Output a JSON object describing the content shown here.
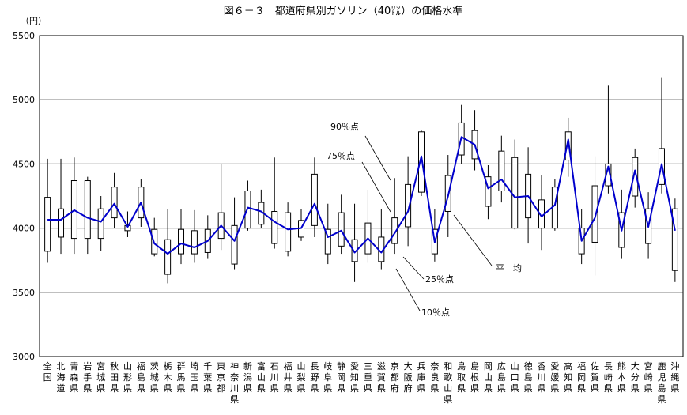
{
  "chart_data": {
    "type": "box",
    "title": "図６－３　都道府県別ガソリン（40㍑）の価格水準",
    "ylabel": "（円）",
    "ylim": [
      3000,
      5500
    ],
    "yticks": [
      3000,
      3500,
      4000,
      4500,
      5000,
      5500
    ],
    "grid_y": [
      3500,
      4000,
      4500,
      5000
    ],
    "categories": [
      "全国",
      "北海道",
      "青森県",
      "岩手県",
      "宮城県",
      "秋田県",
      "山形県",
      "福島県",
      "茨城県",
      "栃木県",
      "群馬県",
      "埼玉県",
      "千葉県",
      "東京都",
      "神奈川県",
      "新潟県",
      "富山県",
      "石川県",
      "福井県",
      "山梨県",
      "長野県",
      "岐阜県",
      "静岡県",
      "愛知県",
      "三重県",
      "滋賀県",
      "京都府",
      "大阪府",
      "兵庫県",
      "奈良県",
      "和歌山県",
      "鳥取県",
      "島根県",
      "岡山県",
      "広島県",
      "山口県",
      "徳島県",
      "香川県",
      "愛媛県",
      "高知県",
      "福岡県",
      "佐賀県",
      "長崎県",
      "熊本県",
      "大分県",
      "宮崎県",
      "鹿児島県",
      "沖縄県"
    ],
    "series": [
      {
        "name": "平均",
        "values": [
          4065,
          4065,
          4140,
          4080,
          4050,
          4190,
          4010,
          4200,
          3880,
          3800,
          3880,
          3850,
          3900,
          4020,
          3900,
          4160,
          4130,
          4050,
          3990,
          4000,
          4190,
          3930,
          3980,
          3810,
          3920,
          3810,
          3960,
          4130,
          4560,
          3890,
          4250,
          4710,
          4650,
          4310,
          4380,
          4240,
          4250,
          4090,
          4180,
          4690,
          3900,
          4080,
          4480,
          3980,
          4450,
          4010,
          4500,
          3980
        ]
      },
      {
        "name": "25%点",
        "values": [
          3820,
          3930,
          3920,
          3920,
          3920,
          4080,
          3980,
          4080,
          3800,
          3640,
          3800,
          3800,
          3810,
          3920,
          3720,
          4000,
          4030,
          3880,
          3820,
          3930,
          4020,
          3800,
          3860,
          3740,
          3800,
          3740,
          3880,
          4010,
          4280,
          3800,
          4130,
          4570,
          4540,
          4170,
          4290,
          4000,
          4080,
          4000,
          4000,
          4530,
          3800,
          3890,
          4330,
          3850,
          4250,
          3880,
          4340,
          3670
        ]
      },
      {
        "name": "75%点",
        "values": [
          4240,
          4150,
          4370,
          4370,
          4150,
          4320,
          4020,
          4320,
          3990,
          3910,
          3990,
          3980,
          3990,
          4120,
          4020,
          4290,
          4200,
          4130,
          4120,
          4060,
          4420,
          3990,
          4120,
          3910,
          4040,
          3930,
          4080,
          4340,
          4750,
          3990,
          4410,
          4820,
          4760,
          4400,
          4600,
          4550,
          4420,
          4220,
          4320,
          4750,
          4000,
          4330,
          4500,
          4120,
          4550,
          4150,
          4620,
          4150
        ]
      },
      {
        "name": "10%点",
        "values": [
          3730,
          3800,
          3800,
          3800,
          3820,
          4000,
          3930,
          4010,
          3780,
          3570,
          3720,
          3730,
          3760,
          3830,
          3680,
          3980,
          4000,
          3840,
          3780,
          3900,
          3930,
          3720,
          3800,
          3580,
          3730,
          3680,
          3800,
          3860,
          4250,
          3740,
          3930,
          4500,
          4450,
          4070,
          4200,
          3990,
          3880,
          3830,
          3980,
          4400,
          3720,
          3630,
          4270,
          3760,
          4160,
          3760,
          4270,
          3580
        ]
      },
      {
        "name": "90%点",
        "values": [
          4540,
          4540,
          4550,
          4400,
          4250,
          4430,
          4130,
          4380,
          4080,
          4150,
          4150,
          4140,
          4100,
          4500,
          4240,
          4370,
          4300,
          4550,
          4200,
          4150,
          4550,
          4190,
          4260,
          4190,
          4300,
          4150,
          4390,
          4560,
          4760,
          4150,
          4570,
          4960,
          4920,
          4490,
          4720,
          4690,
          4630,
          4410,
          4380,
          4860,
          4150,
          4560,
          5110,
          4300,
          4620,
          4280,
          5170,
          4230
        ]
      }
    ],
    "annotations": {
      "p90": "90％点",
      "p75": "75％点",
      "mean": "平　均",
      "p25": "25％点",
      "p10": "10％点"
    },
    "colors": {
      "mean_line": "#0000cc",
      "box_stroke": "#000000",
      "box_fill": "#ffffff",
      "grid": "#000000"
    }
  }
}
